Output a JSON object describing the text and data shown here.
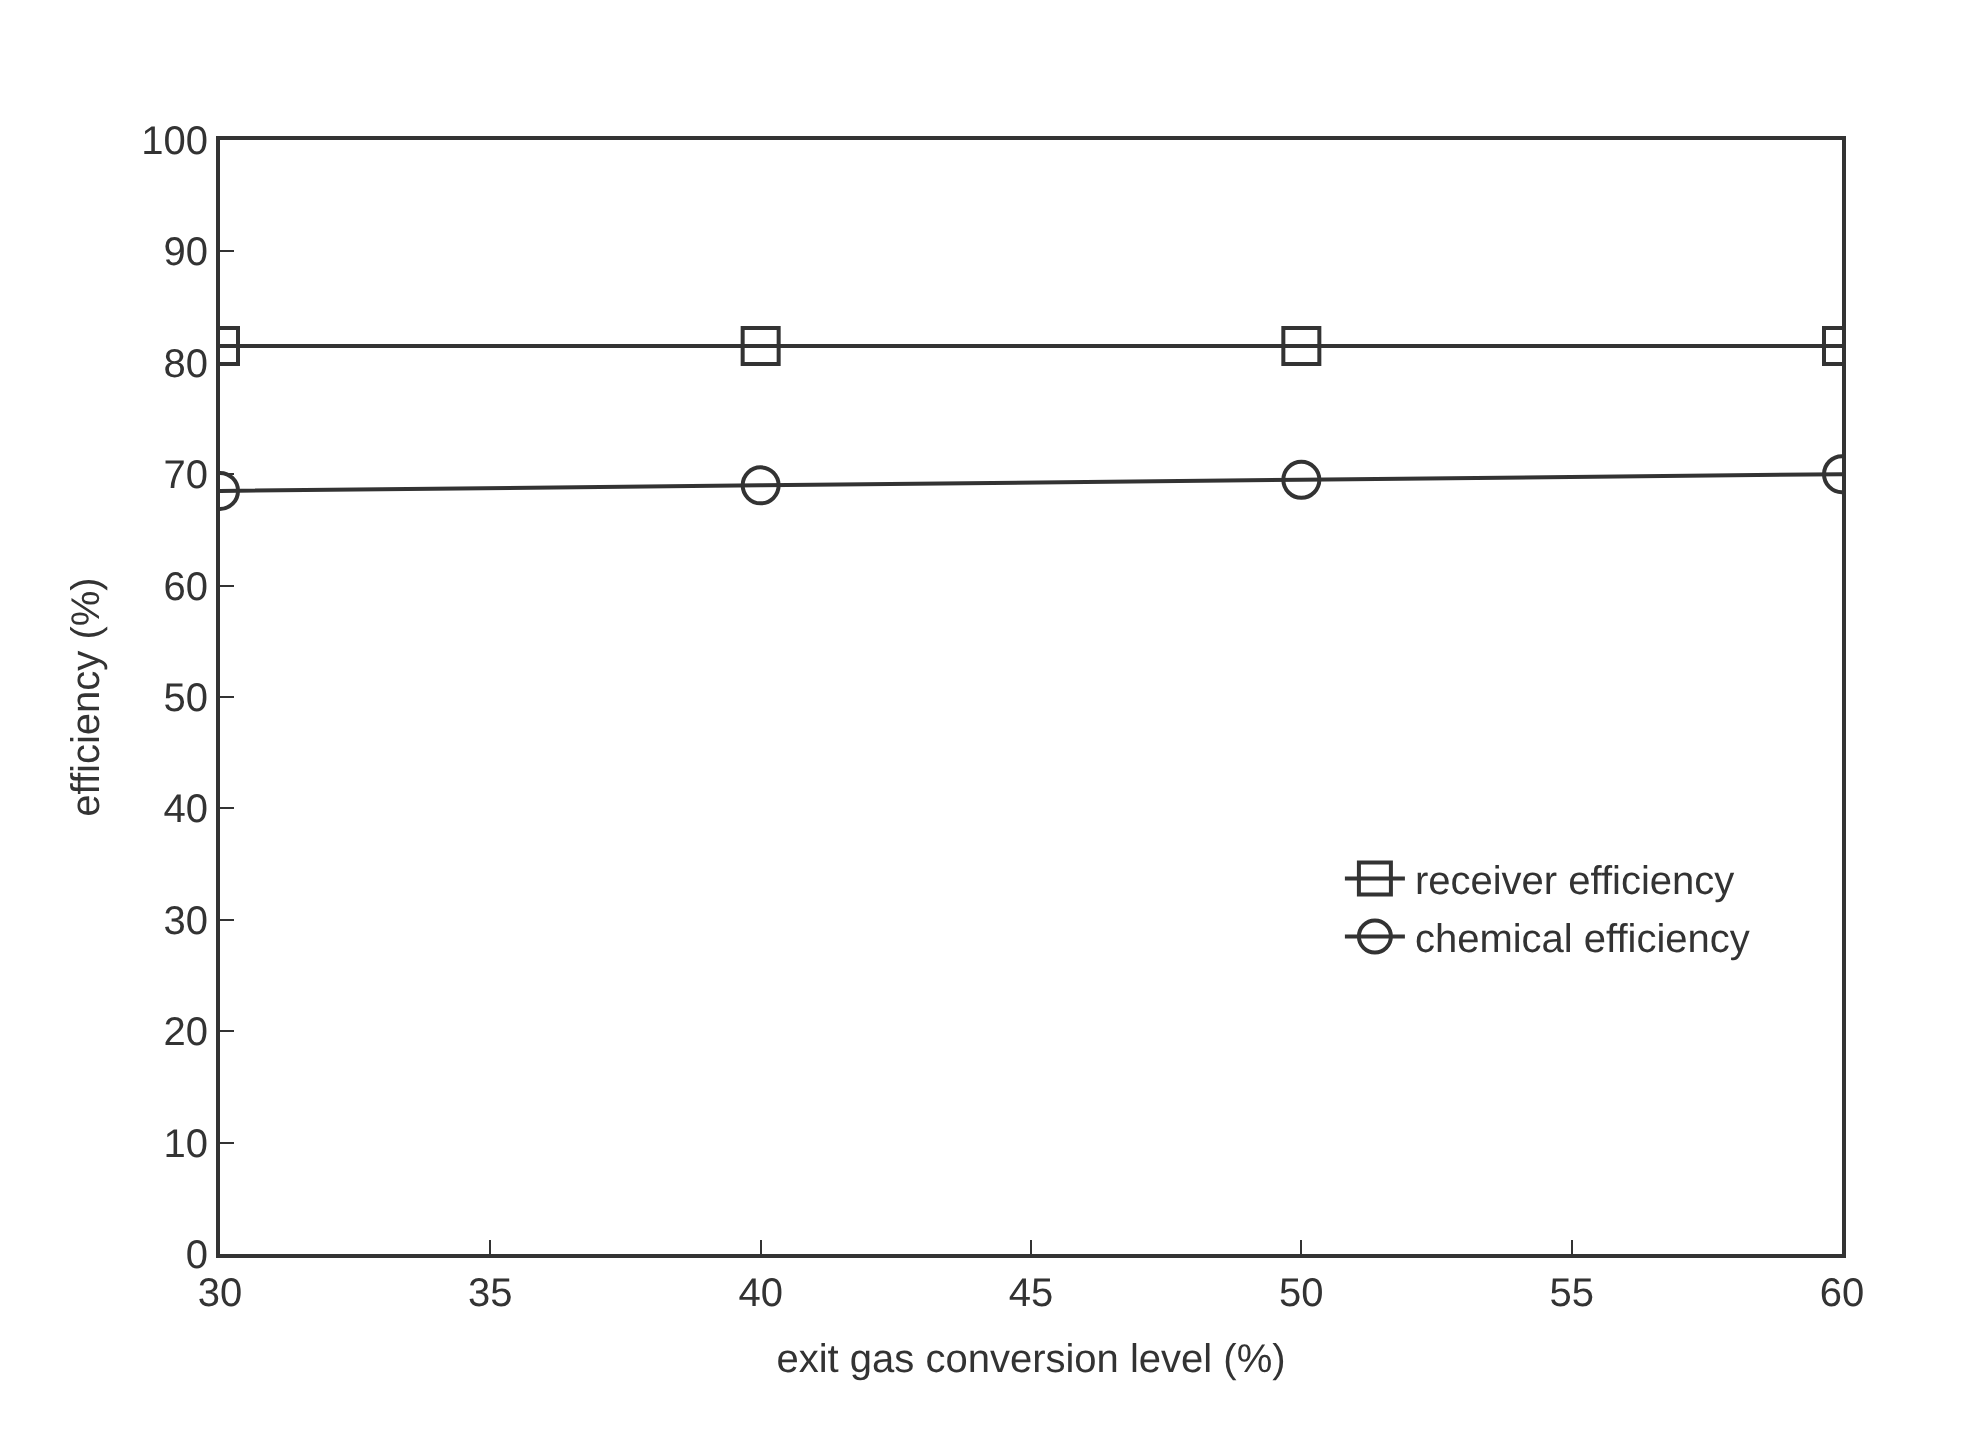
{
  "chart_data": {
    "type": "line",
    "xlabel": "exit gas conversion level (%)",
    "ylabel": "efficiency (%)",
    "x": [
      30,
      40,
      50,
      60
    ],
    "series": [
      {
        "name": "receiver efficiency",
        "color": "#333333",
        "marker": "square",
        "values": [
          81.5,
          81.5,
          81.5,
          81.5
        ]
      },
      {
        "name": "chemical efficiency",
        "color": "#333333",
        "marker": "circle",
        "values": [
          68.5,
          69,
          69.5,
          70
        ]
      }
    ],
    "xlim": [
      30,
      60
    ],
    "xticks": [
      30,
      35,
      40,
      45,
      50,
      55,
      60
    ],
    "ylim": [
      0,
      100
    ],
    "yticks": [
      0,
      10,
      20,
      30,
      40,
      50,
      60,
      70,
      80,
      90,
      100
    ],
    "legend": "bottom right",
    "line_style": "solid"
  }
}
